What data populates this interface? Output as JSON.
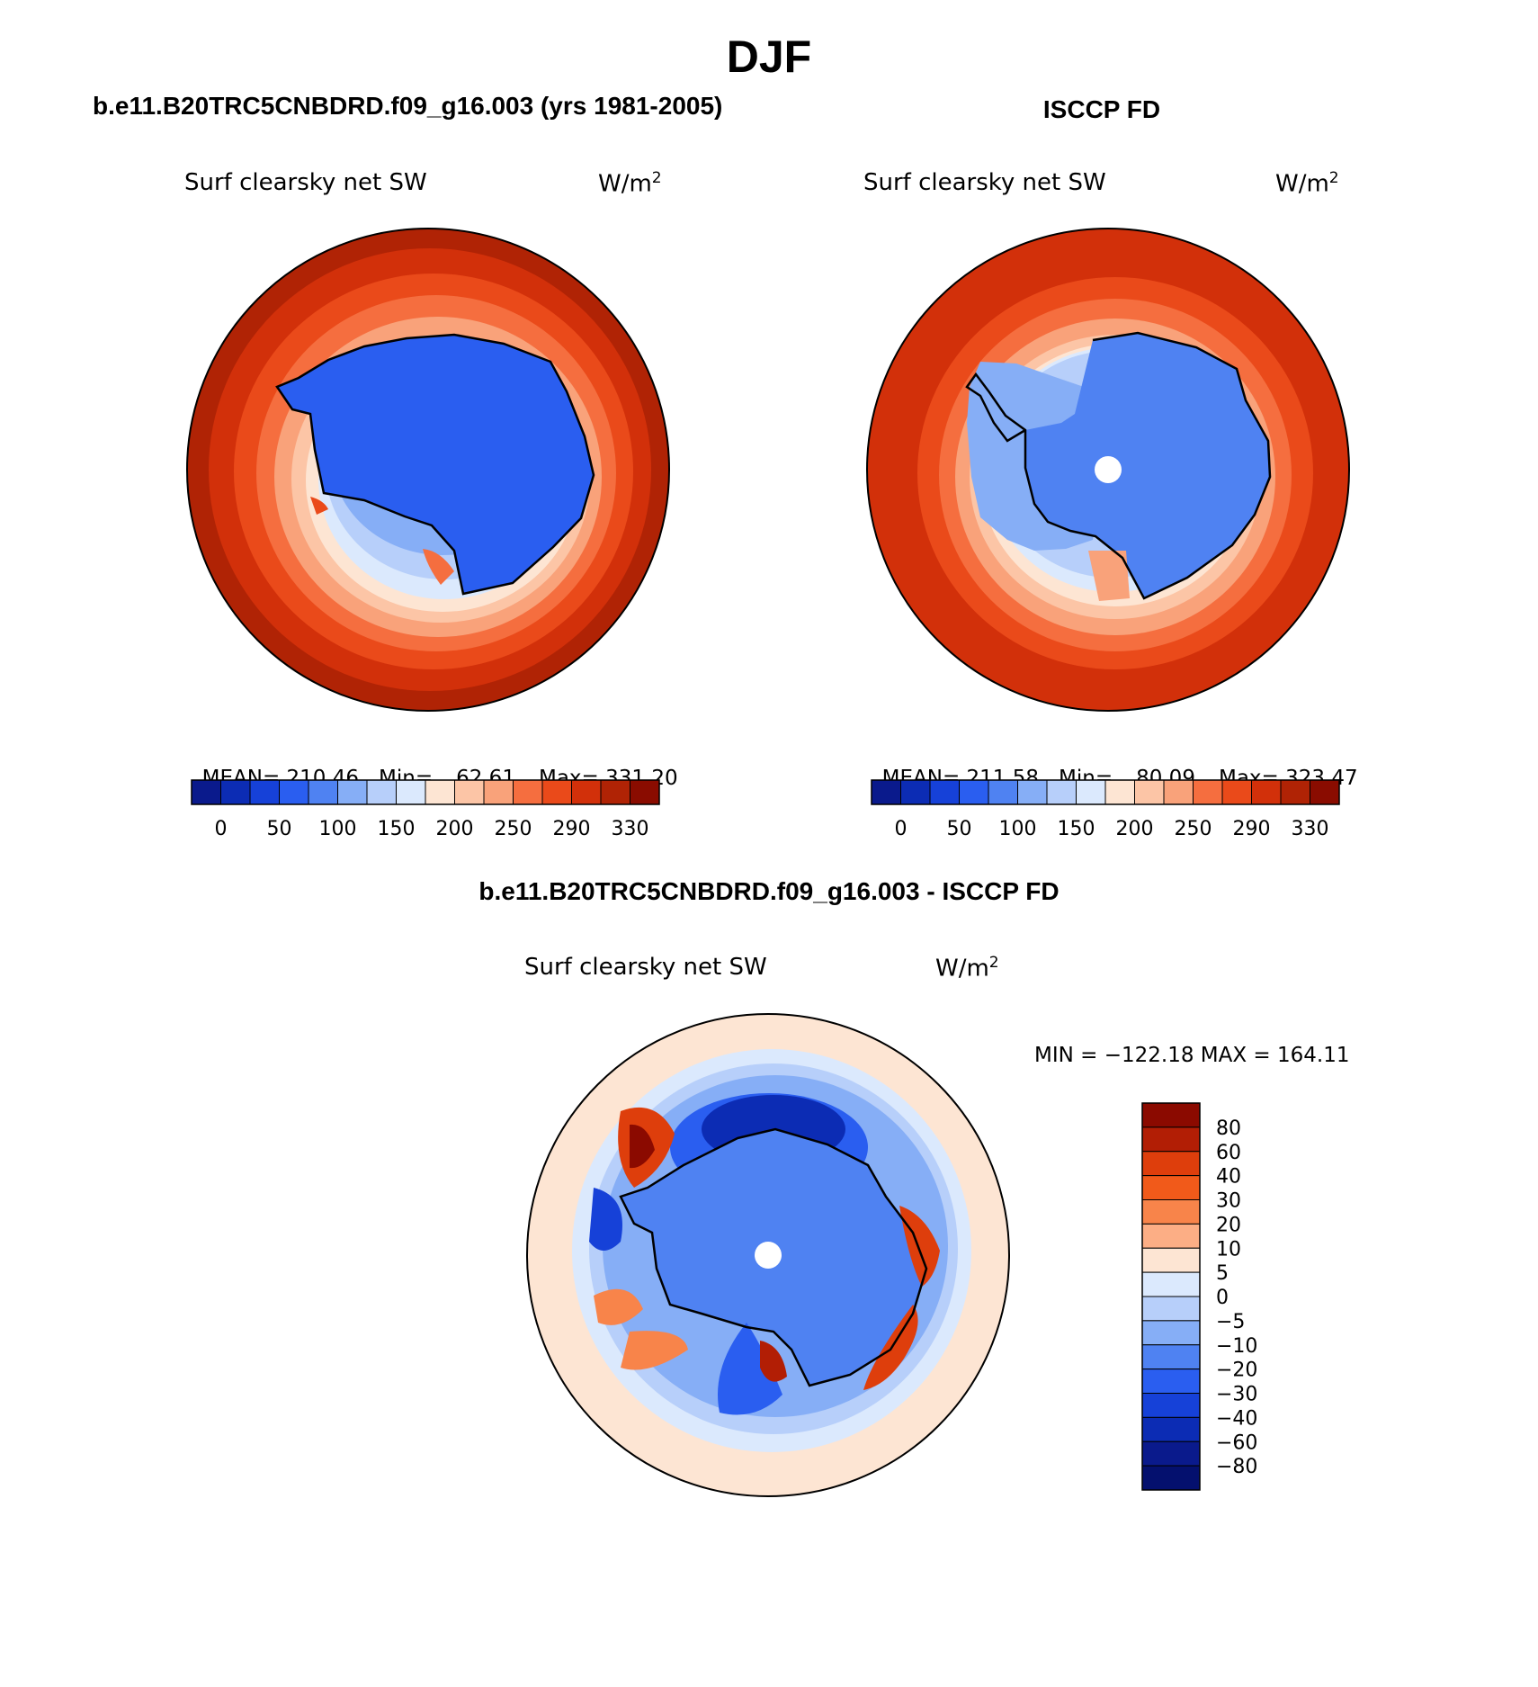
{
  "figure": {
    "title": "DJF"
  },
  "panels": [
    {
      "id": "model",
      "heading": "b.e11.B20TRC5CNBDRD.f09_g16.003 (yrs 1981-2005)",
      "variable": "Surf clearsky net SW",
      "units_base": "W/m",
      "units_exp": "2",
      "stats": {
        "mean_label": "MEAN=",
        "mean": "210.46",
        "min_label": "Min=",
        "min": "62.61",
        "max_label": "Max=",
        "max": "331.20"
      },
      "levels": [
        "0",
        "50",
        "100",
        "150",
        "200",
        "250",
        "290",
        "330"
      ]
    },
    {
      "id": "obs",
      "heading": "ISCCP FD",
      "variable": "Surf clearsky net SW",
      "units_base": "W/m",
      "units_exp": "2",
      "stats": {
        "mean_label": "MEAN=",
        "mean": "211.58",
        "min_label": "Min=",
        "min": "80.09",
        "max_label": "Max=",
        "max": "323.47"
      },
      "levels": [
        "0",
        "50",
        "100",
        "150",
        "200",
        "250",
        "290",
        "330"
      ]
    },
    {
      "id": "diff",
      "heading": "b.e11.B20TRC5CNBDRD.f09_g16.003 - ISCCP FD",
      "variable": "Surf clearsky net SW",
      "units_base": "W/m",
      "units_exp": "2",
      "minmax": "MIN = −122.18 MAX = 164.11",
      "levels": [
        "80",
        "60",
        "40",
        "30",
        "20",
        "10",
        "5",
        "0",
        "−5",
        "−10",
        "−20",
        "−30",
        "−40",
        "−60",
        "−80"
      ]
    }
  ],
  "palettes": {
    "abs": [
      "#0a1a8c",
      "#0c2cb4",
      "#1641d8",
      "#2a5ef0",
      "#4f82f2",
      "#86aef6",
      "#b7cffa",
      "#dbe9fd",
      "#fde5d3",
      "#fcc5a6",
      "#f9a27a",
      "#f56e3f",
      "#ea4a1a",
      "#d2300a",
      "#b02305",
      "#8a0c00"
    ],
    "diff": [
      "#8b0a00",
      "#b21e05",
      "#de3e0c",
      "#f15a1a",
      "#f8844a",
      "#fcae85",
      "#fde5d3",
      "#dbe9fd",
      "#b7cffa",
      "#86aef6",
      "#4f82f2",
      "#2a5ef0",
      "#1641d8",
      "#0c2cb4",
      "#0a1a8c",
      "#04106e"
    ]
  }
}
